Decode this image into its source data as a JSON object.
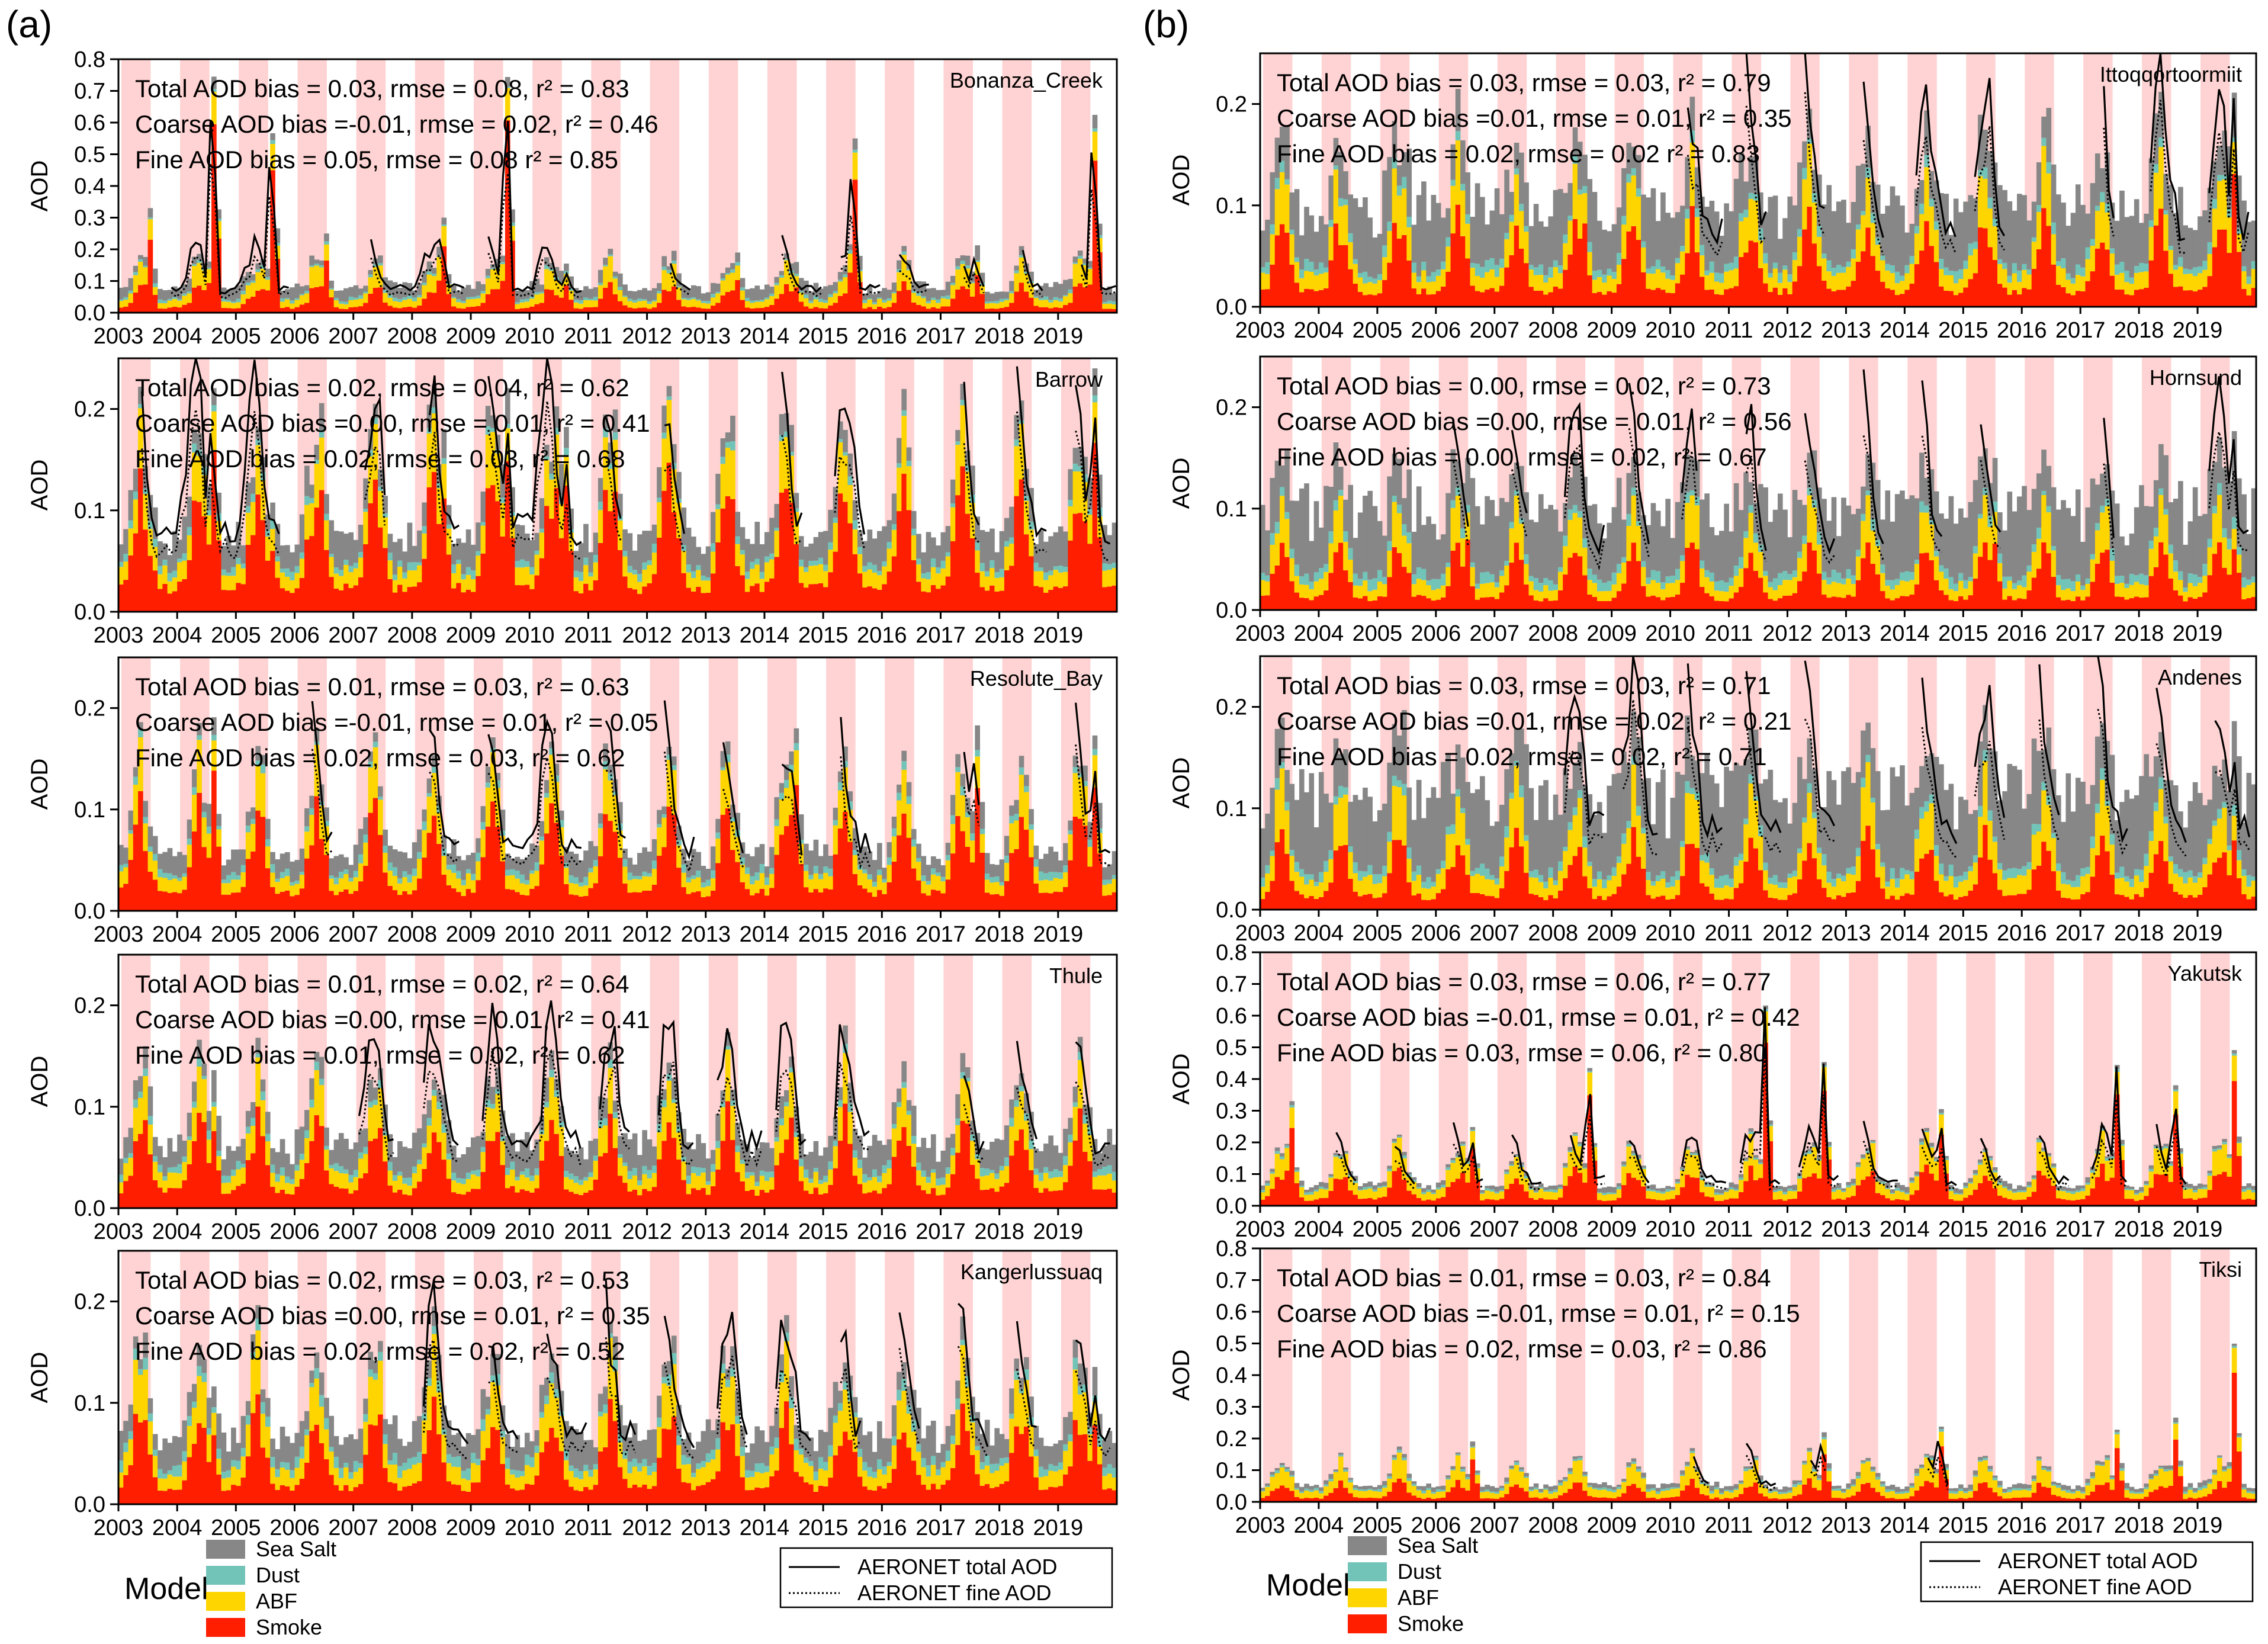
{
  "panel_labels": [
    "(a)",
    "(b)"
  ],
  "legend": {
    "model_label": "Model",
    "components": [
      {
        "name": "Sea Salt",
        "color": "#878787"
      },
      {
        "name": "Dust",
        "color": "#72c3b8"
      },
      {
        "name": "ABF",
        "color": "#ffd500"
      },
      {
        "name": "Smoke",
        "color": "#ff1e00"
      }
    ],
    "lines": [
      {
        "name": "AERONET total AOD",
        "style": "solid"
      },
      {
        "name": "AERONET fine AOD",
        "style": "dotted"
      }
    ]
  },
  "colors": {
    "season_shading": "#ffd3d3",
    "sea_salt": "#878787",
    "dust": "#72c3b8",
    "abf": "#ffd500",
    "smoke": "#ff1e00"
  },
  "chart_data": [
    {
      "type": "bar",
      "panel": "a",
      "site": "Bonanza_Creek",
      "ylabel": "AOD",
      "ylim": [
        0,
        0.8
      ],
      "yticks": [
        "0.0",
        "0.1",
        "0.2",
        "0.3",
        "0.4",
        "0.5",
        "0.6",
        "0.7",
        "0.8"
      ],
      "xticks": [
        "2003",
        "2004",
        "2005",
        "2006",
        "2007",
        "2008",
        "2009",
        "2010",
        "2011",
        "2012",
        "2013",
        "2014",
        "2015",
        "2016",
        "2017",
        "2018",
        "2019"
      ],
      "stats": [
        "Total AOD bias = 0.03, rmse = 0.08, r² = 0.83",
        "Coarse AOD bias =-0.01, rmse = 0.02, r² = 0.46",
        "Fine AOD bias = 0.05, rmse = 0.08 r² = 0.85"
      ],
      "base": {
        "salt": 0.028,
        "dust": 0.008,
        "abf": 0.04,
        "smoke": 0.06
      },
      "spikes": [
        [
          2003.5,
          0.33
        ],
        [
          2004.6,
          0.79
        ],
        [
          2005.6,
          0.6
        ],
        [
          2006.5,
          0.25
        ],
        [
          2008.5,
          0.3
        ],
        [
          2009.6,
          0.79
        ],
        [
          2010.6,
          0.16
        ],
        [
          2013.5,
          0.19
        ],
        [
          2014.5,
          0.16
        ],
        [
          2015.5,
          0.55
        ],
        [
          2017.6,
          0.22
        ],
        [
          2019.6,
          0.66
        ]
      ],
      "aeronet": [
        [
          2003.9,
          2005.9
        ],
        [
          2007.3,
          2008.9
        ],
        [
          2009.3,
          2010.9
        ],
        [
          2012.4,
          2012.8
        ],
        [
          2014.3,
          2015.0
        ],
        [
          2015.3,
          2016.0
        ],
        [
          2016.3,
          2016.8
        ],
        [
          2017.4,
          2017.8
        ],
        [
          2018.4,
          2018.8
        ],
        [
          2019.4,
          2020.0
        ]
      ]
    },
    {
      "type": "bar",
      "panel": "a",
      "site": "Barrow",
      "ylabel": "AOD",
      "ylim": [
        0,
        0.25
      ],
      "yticks": [
        "0.0",
        "0.1",
        "0.2"
      ],
      "xticks": [
        "2003",
        "2004",
        "2005",
        "2006",
        "2007",
        "2008",
        "2009",
        "2010",
        "2011",
        "2012",
        "2013",
        "2014",
        "2015",
        "2016",
        "2017",
        "2018",
        "2019"
      ],
      "stats": [
        "Total AOD bias = 0.02, rmse = 0.04, r² = 0.62",
        "Coarse AOD bias =0.00, rmse = 0.01, r² = 0.41",
        "Fine AOD bias = 0.02, rmse = 0.03, r² = 0.68"
      ],
      "base": {
        "salt": 0.022,
        "dust": 0.006,
        "abf": 0.03,
        "smoke": 0.09
      },
      "spikes": [
        [
          2004.6,
          0.23
        ],
        [
          2005.6,
          0.11
        ],
        [
          2008.5,
          0.18
        ],
        [
          2009.6,
          0.23
        ],
        [
          2010.6,
          0.19
        ],
        [
          2015.5,
          0.11
        ],
        [
          2019.6,
          0.25
        ]
      ],
      "aeronet": [
        [
          2003.4,
          2005.8
        ],
        [
          2007.2,
          2007.6
        ],
        [
          2008.3,
          2008.8
        ],
        [
          2009.3,
          2010.9
        ],
        [
          2011.3,
          2011.6
        ],
        [
          2012.3,
          2012.7
        ],
        [
          2014.3,
          2014.7
        ],
        [
          2015.2,
          2015.7
        ],
        [
          2017.4,
          2017.7
        ],
        [
          2018.3,
          2018.8
        ],
        [
          2019.3,
          2019.9
        ]
      ]
    },
    {
      "type": "bar",
      "panel": "a",
      "site": "Resolute_Bay",
      "ylabel": "AOD",
      "ylim": [
        0,
        0.25
      ],
      "yticks": [
        "0.0",
        "0.1",
        "0.2"
      ],
      "xticks": [
        "2003",
        "2004",
        "2005",
        "2006",
        "2007",
        "2008",
        "2009",
        "2010",
        "2011",
        "2012",
        "2013",
        "2014",
        "2015",
        "2016",
        "2017",
        "2018",
        "2019"
      ],
      "stats": [
        "Total AOD bias = 0.01, rmse = 0.03, r² = 0.63",
        "Coarse AOD bias =-0.01, rmse = 0.01, r² = 0.05",
        "Fine AOD bias = 0.02, rmse = 0.03, r² = 0.62"
      ],
      "base": {
        "salt": 0.015,
        "dust": 0.006,
        "abf": 0.025,
        "smoke": 0.07
      },
      "spikes": [
        [
          2004.6,
          0.2
        ],
        [
          2014.5,
          0.18
        ],
        [
          2017.6,
          0.19
        ],
        [
          2019.6,
          0.18
        ]
      ],
      "aeronet": [
        [
          2006.3,
          2006.7
        ],
        [
          2008.3,
          2008.8
        ],
        [
          2009.3,
          2010.9
        ],
        [
          2011.3,
          2011.7
        ],
        [
          2012.3,
          2012.8
        ],
        [
          2013.3,
          2013.7
        ],
        [
          2014.3,
          2014.7
        ],
        [
          2015.3,
          2015.8
        ],
        [
          2017.4,
          2017.7
        ],
        [
          2019.3,
          2019.9
        ]
      ]
    },
    {
      "type": "bar",
      "panel": "a",
      "site": "Thule",
      "ylabel": "AOD",
      "ylim": [
        0,
        0.25
      ],
      "yticks": [
        "0.0",
        "0.1",
        "0.2"
      ],
      "xticks": [
        "2003",
        "2004",
        "2005",
        "2006",
        "2007",
        "2008",
        "2009",
        "2010",
        "2011",
        "2012",
        "2013",
        "2014",
        "2015",
        "2016",
        "2017",
        "2018",
        "2019"
      ],
      "stats": [
        "Total AOD bias = 0.01, rmse = 0.02, r² = 0.64",
        "Coarse AOD bias =0.00, rmse = 0.01, r² = 0.41",
        "Fine AOD bias = 0.01, rmse = 0.02, r² = 0.62"
      ],
      "base": {
        "salt": 0.02,
        "dust": 0.006,
        "abf": 0.025,
        "smoke": 0.065
      },
      "spikes": [
        [
          2004.6,
          0.14
        ],
        [
          2014.5,
          0.1
        ]
      ],
      "aeronet": [
        [
          2007.1,
          2007.7
        ],
        [
          2008.2,
          2008.8
        ],
        [
          2009.2,
          2010.9
        ],
        [
          2011.2,
          2011.7
        ],
        [
          2012.2,
          2012.8
        ],
        [
          2013.2,
          2014.0
        ],
        [
          2014.2,
          2014.7
        ],
        [
          2015.2,
          2015.8
        ],
        [
          2017.4,
          2017.8
        ],
        [
          2018.3,
          2018.7
        ],
        [
          2019.3,
          2019.9
        ]
      ]
    },
    {
      "type": "bar",
      "panel": "a",
      "site": "Kangerlussuaq",
      "ylabel": "AOD",
      "ylim": [
        0,
        0.25
      ],
      "yticks": [
        "0.0",
        "0.1",
        "0.2"
      ],
      "xticks": [
        "2003",
        "2004",
        "2005",
        "2006",
        "2007",
        "2008",
        "2009",
        "2010",
        "2011",
        "2012",
        "2013",
        "2014",
        "2015",
        "2016",
        "2017",
        "2018",
        "2019"
      ],
      "stats": [
        "Total AOD bias = 0.02, rmse = 0.03, r² = 0.53",
        "Coarse AOD bias =0.00, rmse = 0.01, r² = 0.35",
        "Fine AOD bias = 0.02, rmse = 0.02, r² = 0.52"
      ],
      "base": {
        "salt": 0.022,
        "dust": 0.008,
        "abf": 0.03,
        "smoke": 0.065
      },
      "spikes": [
        [
          2004.6,
          0.12
        ],
        [
          2015.5,
          0.1
        ],
        [
          2019.6,
          0.14
        ]
      ],
      "aeronet": [
        [
          2008.2,
          2009.0
        ],
        [
          2009.3,
          2009.8
        ],
        [
          2010.3,
          2011.0
        ],
        [
          2011.3,
          2011.8
        ],
        [
          2012.3,
          2012.8
        ],
        [
          2013.2,
          2013.7
        ],
        [
          2014.2,
          2014.8
        ],
        [
          2015.3,
          2015.7
        ],
        [
          2016.3,
          2016.7
        ],
        [
          2017.3,
          2017.8
        ],
        [
          2018.3,
          2018.7
        ],
        [
          2019.3,
          2019.9
        ]
      ]
    },
    {
      "type": "bar",
      "panel": "b",
      "site": "Ittoqqortoormiit",
      "ylabel": "AOD",
      "ylim": [
        0,
        0.25
      ],
      "yticks": [
        "0.0",
        "0.1",
        "0.2"
      ],
      "xticks": [
        "2003",
        "2004",
        "2005",
        "2006",
        "2007",
        "2008",
        "2009",
        "2010",
        "2011",
        "2012",
        "2013",
        "2014",
        "2015",
        "2016",
        "2017",
        "2018",
        "2019"
      ],
      "stats": [
        "Total AOD bias = 0.03, rmse = 0.03, r² = 0.79",
        "Coarse AOD bias =0.01, rmse = 0.01, r² = 0.35",
        "Fine AOD bias = 0.02, rmse = 0.02 r² = 0.83"
      ],
      "base": {
        "salt": 0.045,
        "dust": 0.008,
        "abf": 0.03,
        "smoke": 0.06
      },
      "spikes": [
        [
          2008.5,
          0.15
        ],
        [
          2019.6,
          0.22
        ]
      ],
      "aeronet": [
        [
          2010.3,
          2010.9
        ],
        [
          2011.3,
          2011.7
        ],
        [
          2012.3,
          2012.7
        ],
        [
          2013.3,
          2013.7
        ],
        [
          2014.2,
          2014.9
        ],
        [
          2015.2,
          2015.7
        ],
        [
          2017.4,
          2017.6
        ],
        [
          2018.2,
          2018.8
        ],
        [
          2019.2,
          2019.9
        ]
      ]
    },
    {
      "type": "bar",
      "panel": "b",
      "site": "Hornsund",
      "ylabel": "AOD",
      "ylim": [
        0,
        0.25
      ],
      "yticks": [
        "0.0",
        "0.1",
        "0.2"
      ],
      "xticks": [
        "2003",
        "2004",
        "2005",
        "2006",
        "2007",
        "2008",
        "2009",
        "2010",
        "2011",
        "2012",
        "2013",
        "2014",
        "2015",
        "2016",
        "2017",
        "2018",
        "2019"
      ],
      "stats": [
        "Total AOD bias = 0.00, rmse = 0.02, r² = 0.73",
        "Coarse AOD bias =0.00, rmse = 0.01, r² = 0.56",
        "Fine AOD bias = 0.00, rmse = 0.02, r² = 0.67"
      ],
      "base": {
        "salt": 0.05,
        "dust": 0.008,
        "abf": 0.025,
        "smoke": 0.045
      },
      "spikes": [
        [
          2006.5,
          0.15
        ],
        [
          2015.5,
          0.15
        ],
        [
          2019.6,
          0.18
        ]
      ],
      "aeronet": [
        [
          2006.3,
          2006.6
        ],
        [
          2007.3,
          2007.6
        ],
        [
          2008.2,
          2008.9
        ],
        [
          2009.3,
          2009.7
        ],
        [
          2010.2,
          2010.5
        ],
        [
          2011.3,
          2011.7
        ],
        [
          2012.3,
          2012.8
        ],
        [
          2013.3,
          2013.7
        ],
        [
          2014.3,
          2014.7
        ],
        [
          2015.3,
          2015.7
        ],
        [
          2017.4,
          2017.6
        ],
        [
          2019.2,
          2019.9
        ]
      ]
    },
    {
      "type": "bar",
      "panel": "b",
      "site": "Andenes",
      "ylabel": "AOD",
      "ylim": [
        0,
        0.25
      ],
      "yticks": [
        "0.0",
        "0.1",
        "0.2"
      ],
      "xticks": [
        "2003",
        "2004",
        "2005",
        "2006",
        "2007",
        "2008",
        "2009",
        "2010",
        "2011",
        "2012",
        "2013",
        "2014",
        "2015",
        "2016",
        "2017",
        "2018",
        "2019"
      ],
      "stats": [
        "Total AOD bias = 0.03, rmse = 0.03, r² = 0.71",
        "Coarse AOD bias =0.01, rmse = 0.02, r² = 0.21",
        "Fine AOD bias = 0.02, rmse = 0.02, r² = 0.71"
      ],
      "base": {
        "salt": 0.06,
        "dust": 0.008,
        "abf": 0.03,
        "smoke": 0.05
      },
      "spikes": [
        [
          2019.6,
          0.19
        ]
      ],
      "aeronet": [
        [
          2008.2,
          2008.9
        ],
        [
          2009.2,
          2009.8
        ],
        [
          2010.3,
          2010.9
        ],
        [
          2011.3,
          2011.9
        ],
        [
          2012.3,
          2012.8
        ],
        [
          2014.3,
          2014.9
        ],
        [
          2015.2,
          2015.7
        ],
        [
          2016.3,
          2016.7
        ],
        [
          2017.3,
          2017.8
        ],
        [
          2018.3,
          2018.8
        ],
        [
          2019.3,
          2019.9
        ]
      ]
    },
    {
      "type": "bar",
      "panel": "b",
      "site": "Yakutsk",
      "ylabel": "AOD",
      "ylim": [
        0,
        0.8
      ],
      "yticks": [
        "0.0",
        "0.1",
        "0.2",
        "0.3",
        "0.4",
        "0.5",
        "0.6",
        "0.7",
        "0.8"
      ],
      "xticks": [
        "2003",
        "2004",
        "2005",
        "2006",
        "2007",
        "2008",
        "2009",
        "2010",
        "2011",
        "2012",
        "2013",
        "2014",
        "2015",
        "2016",
        "2017",
        "2018",
        "2019"
      ],
      "stats": [
        "Total AOD bias = 0.03, rmse = 0.06, r² = 0.77",
        "Coarse AOD bias =-0.01, rmse = 0.01, r² = 0.42",
        "Fine AOD bias = 0.03, rmse = 0.06, r² = 0.80"
      ],
      "base": {
        "salt": 0.01,
        "dust": 0.006,
        "abf": 0.05,
        "smoke": 0.08
      },
      "spikes": [
        [
          2003.5,
          0.33
        ],
        [
          2006.6,
          0.26
        ],
        [
          2008.6,
          0.46
        ],
        [
          2011.6,
          0.67
        ],
        [
          2012.6,
          0.48
        ],
        [
          2014.6,
          0.32
        ],
        [
          2017.6,
          0.47
        ],
        [
          2018.6,
          0.4
        ],
        [
          2019.6,
          0.52
        ]
      ],
      "aeronet": [
        [
          2004.3,
          2004.7
        ],
        [
          2005.3,
          2005.7
        ],
        [
          2006.3,
          2006.8
        ],
        [
          2007.3,
          2007.8
        ],
        [
          2008.3,
          2008.9
        ],
        [
          2009.3,
          2009.7
        ],
        [
          2010.2,
          2011.0
        ],
        [
          2011.2,
          2011.9
        ],
        [
          2012.2,
          2012.9
        ],
        [
          2013.3,
          2013.9
        ],
        [
          2014.3,
          2014.9
        ],
        [
          2015.3,
          2015.7
        ],
        [
          2016.3,
          2016.8
        ],
        [
          2017.2,
          2017.8
        ],
        [
          2018.3,
          2018.8
        ]
      ]
    },
    {
      "type": "bar",
      "panel": "b",
      "site": "Tiksi",
      "ylabel": "AOD",
      "ylim": [
        0,
        0.8
      ],
      "yticks": [
        "0.0",
        "0.1",
        "0.2",
        "0.3",
        "0.4",
        "0.5",
        "0.6",
        "0.7",
        "0.8"
      ],
      "xticks": [
        "2003",
        "2004",
        "2005",
        "2006",
        "2007",
        "2008",
        "2009",
        "2010",
        "2011",
        "2012",
        "2013",
        "2014",
        "2015",
        "2016",
        "2017",
        "2018",
        "2019"
      ],
      "stats": [
        "Total AOD bias = 0.01, rmse = 0.03, r² = 0.84",
        "Coarse AOD bias =-0.01, rmse = 0.01, r² = 0.15",
        "Fine AOD bias = 0.02, rmse = 0.03, r² = 0.86"
      ],
      "base": {
        "salt": 0.01,
        "dust": 0.006,
        "abf": 0.04,
        "smoke": 0.045
      },
      "spikes": [
        [
          2006.6,
          0.2
        ],
        [
          2012.6,
          0.23
        ],
        [
          2014.6,
          0.25
        ],
        [
          2017.6,
          0.24
        ],
        [
          2018.6,
          0.28
        ],
        [
          2019.6,
          0.53
        ]
      ],
      "aeronet": [
        [
          2010.4,
          2010.7
        ],
        [
          2011.3,
          2011.8
        ],
        [
          2012.4,
          2012.7
        ],
        [
          2014.4,
          2014.8
        ]
      ]
    }
  ]
}
